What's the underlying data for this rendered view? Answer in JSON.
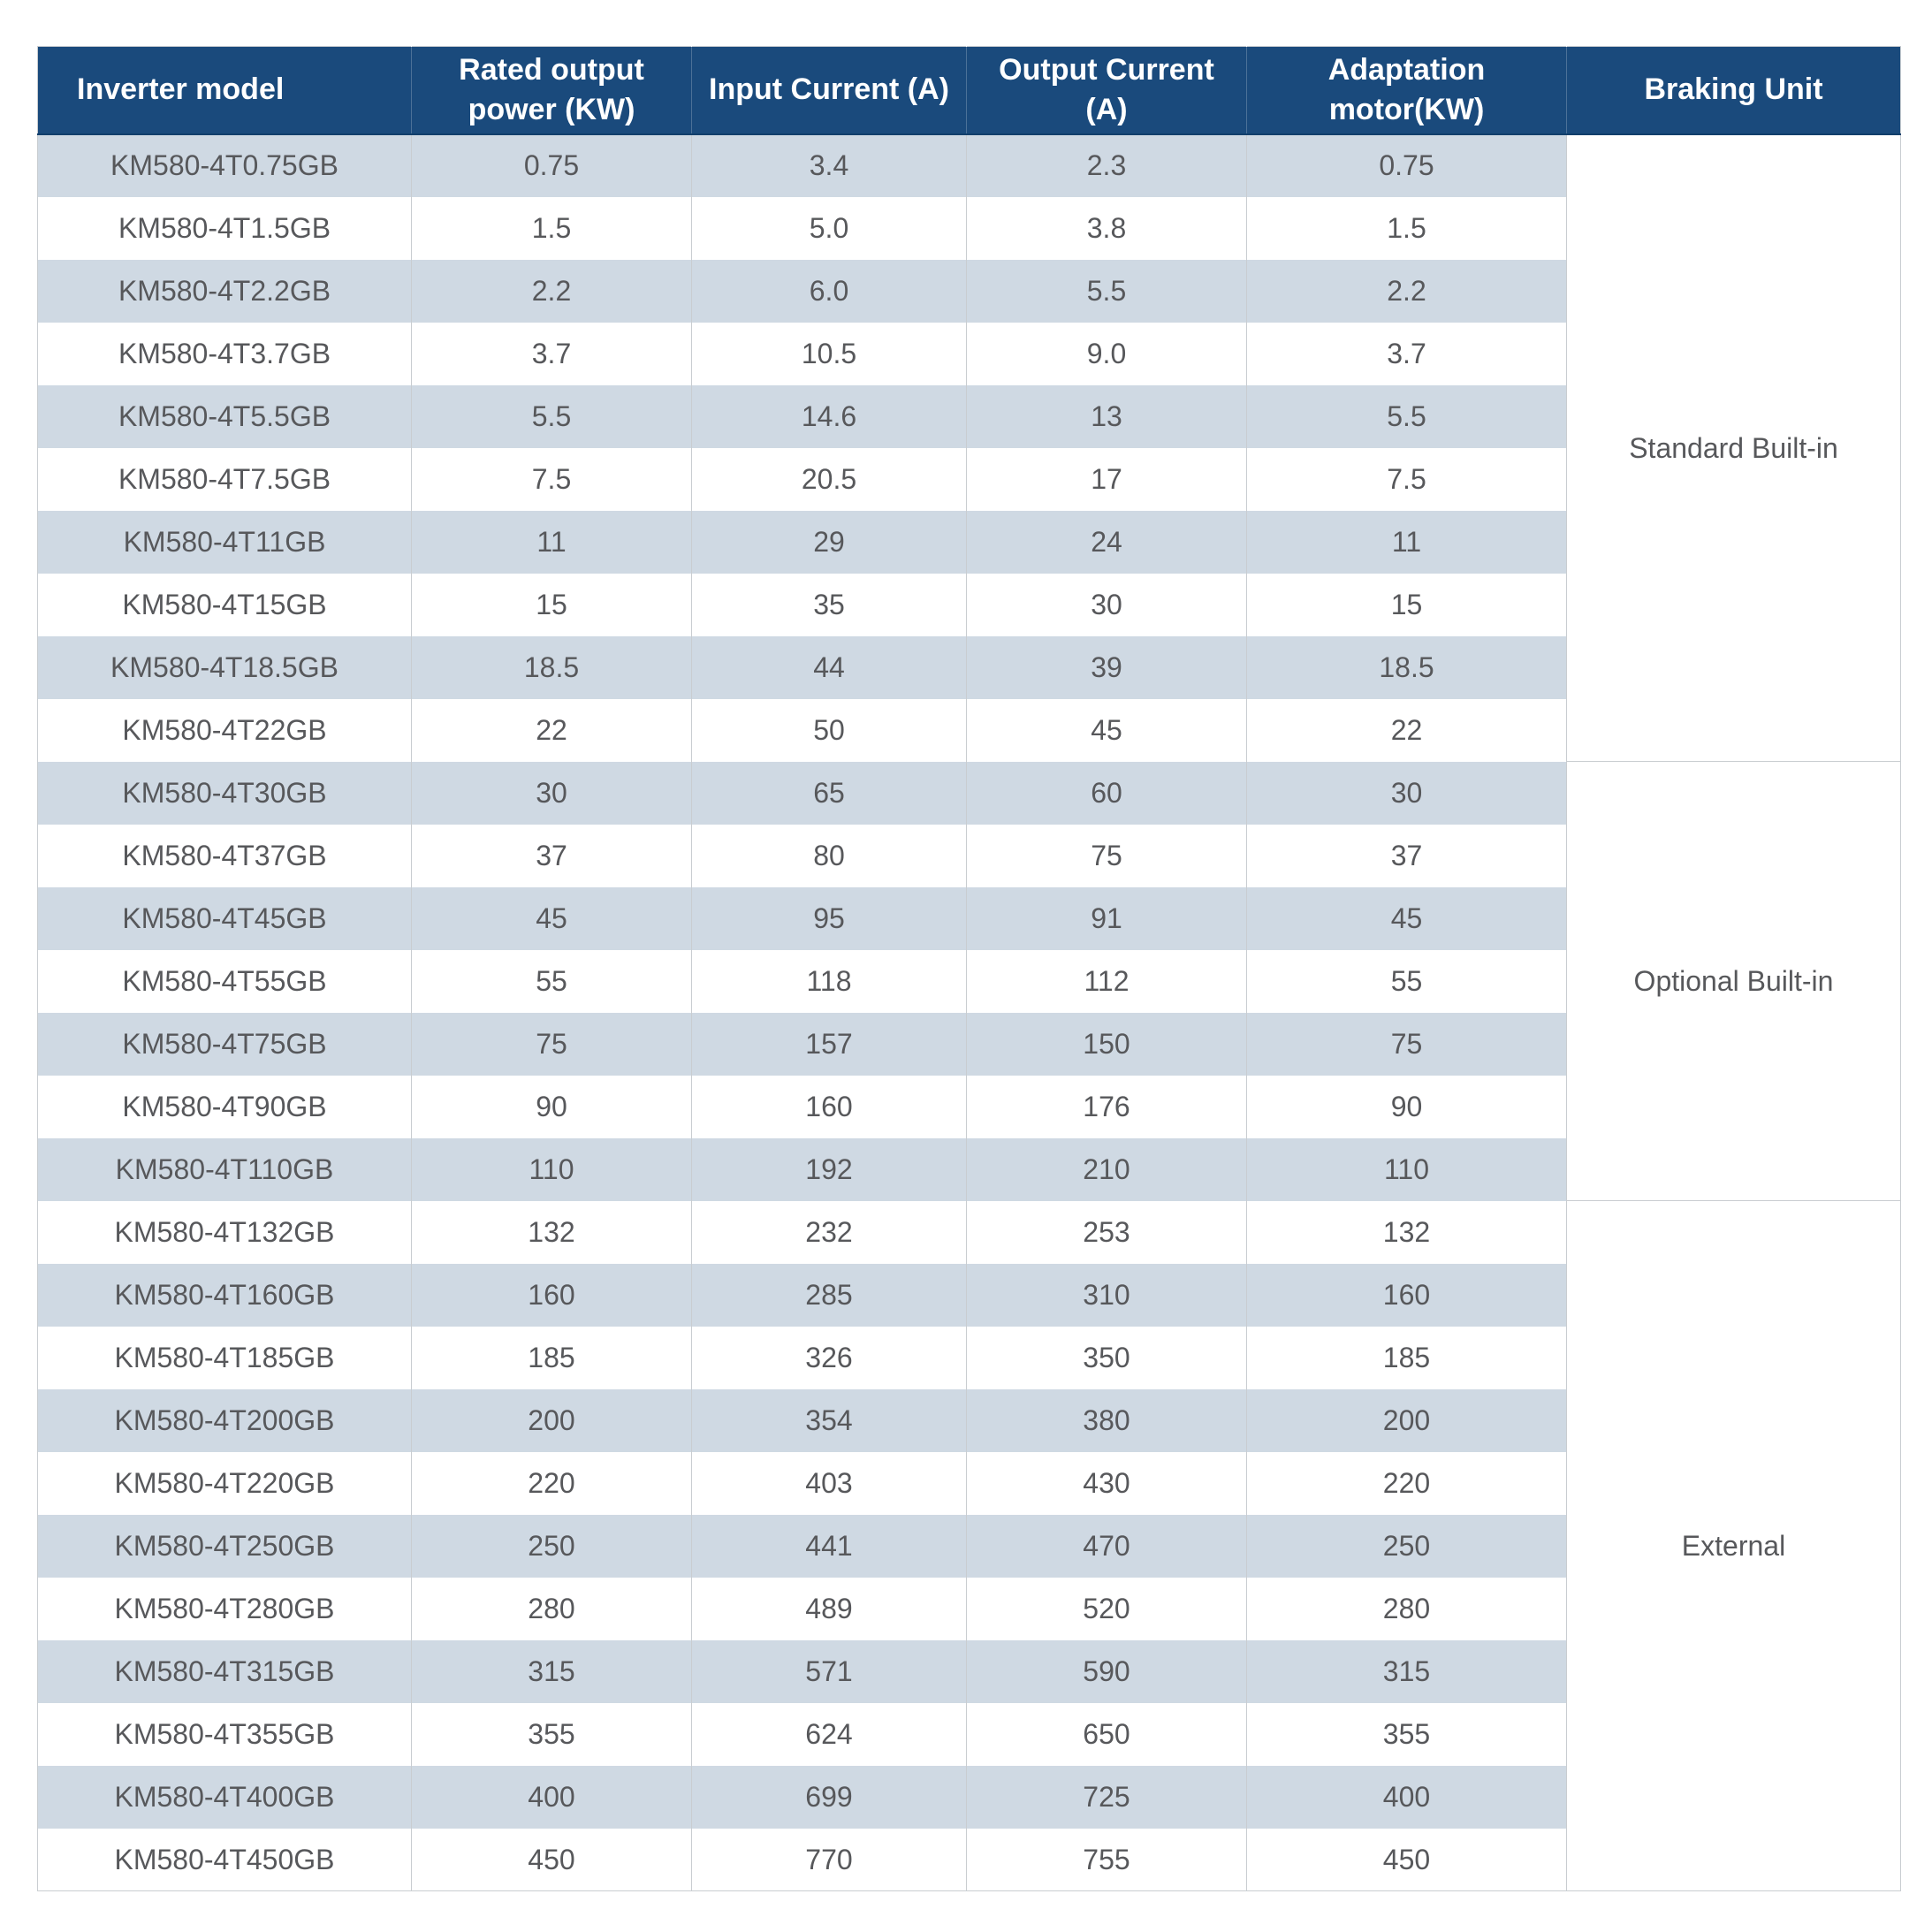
{
  "colors": {
    "header_bg": "#1a4a7c",
    "header_text": "#ffffff",
    "row_stripe": "#cfd9e3",
    "row_white": "#ffffff",
    "body_text": "#57585b",
    "grid_line": "#c9cdd1"
  },
  "table": {
    "columns": [
      {
        "id": "model",
        "label": "Inverter model"
      },
      {
        "id": "rated_power",
        "label": "Rated output power (KW)"
      },
      {
        "id": "input_current",
        "label": "Input Current (A)"
      },
      {
        "id": "output_current",
        "label": "Output Current (A)"
      },
      {
        "id": "adapt_motor",
        "label": "Adaptation motor(KW)"
      },
      {
        "id": "braking_unit",
        "label": "Braking Unit"
      }
    ],
    "sections": [
      {
        "braking_unit": "Standard Built-in",
        "rows": [
          [
            "KM580-4T0.75GB",
            "0.75",
            "3.4",
            "2.3",
            "0.75"
          ],
          [
            "KM580-4T1.5GB",
            "1.5",
            "5.0",
            "3.8",
            "1.5"
          ],
          [
            "KM580-4T2.2GB",
            "2.2",
            "6.0",
            "5.5",
            "2.2"
          ],
          [
            "KM580-4T3.7GB",
            "3.7",
            "10.5",
            "9.0",
            "3.7"
          ],
          [
            "KM580-4T5.5GB",
            "5.5",
            "14.6",
            "13",
            "5.5"
          ],
          [
            "KM580-4T7.5GB",
            "7.5",
            "20.5",
            "17",
            "7.5"
          ],
          [
            "KM580-4T11GB",
            "11",
            "29",
            "24",
            "11"
          ],
          [
            "KM580-4T15GB",
            "15",
            "35",
            "30",
            "15"
          ],
          [
            "KM580-4T18.5GB",
            "18.5",
            "44",
            "39",
            "18.5"
          ],
          [
            "KM580-4T22GB",
            "22",
            "50",
            "45",
            "22"
          ]
        ]
      },
      {
        "braking_unit": "Optional Built-in",
        "rows": [
          [
            "KM580-4T30GB",
            "30",
            "65",
            "60",
            "30"
          ],
          [
            "KM580-4T37GB",
            "37",
            "80",
            "75",
            "37"
          ],
          [
            "KM580-4T45GB",
            "45",
            "95",
            "91",
            "45"
          ],
          [
            "KM580-4T55GB",
            "55",
            "118",
            "112",
            "55"
          ],
          [
            "KM580-4T75GB",
            "75",
            "157",
            "150",
            "75"
          ],
          [
            "KM580-4T90GB",
            "90",
            "160",
            "176",
            "90"
          ],
          [
            "KM580-4T110GB",
            "110",
            "192",
            "210",
            "110"
          ]
        ]
      },
      {
        "braking_unit": "External",
        "rows": [
          [
            "KM580-4T132GB",
            "132",
            "232",
            "253",
            "132"
          ],
          [
            "KM580-4T160GB",
            "160",
            "285",
            "310",
            "160"
          ],
          [
            "KM580-4T185GB",
            "185",
            "326",
            "350",
            "185"
          ],
          [
            "KM580-4T200GB",
            "200",
            "354",
            "380",
            "200"
          ],
          [
            "KM580-4T220GB",
            "220",
            "403",
            "430",
            "220"
          ],
          [
            "KM580-4T250GB",
            "250",
            "441",
            "470",
            "250"
          ],
          [
            "KM580-4T280GB",
            "280",
            "489",
            "520",
            "280"
          ],
          [
            "KM580-4T315GB",
            "315",
            "571",
            "590",
            "315"
          ],
          [
            "KM580-4T355GB",
            "355",
            "624",
            "650",
            "355"
          ],
          [
            "KM580-4T400GB",
            "400",
            "699",
            "725",
            "400"
          ],
          [
            "KM580-4T450GB",
            "450",
            "770",
            "755",
            "450"
          ]
        ]
      }
    ]
  }
}
